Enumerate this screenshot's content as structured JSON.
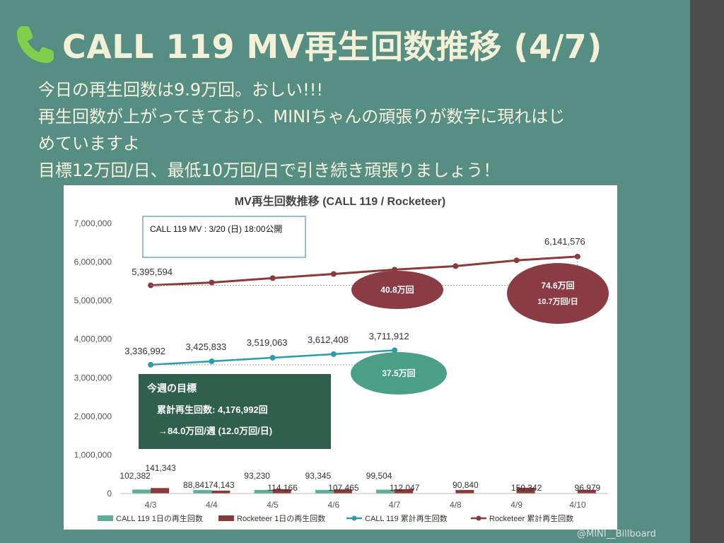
{
  "slide": {
    "title": "CALL 119 MV再生回数推移 (4/7)",
    "lines": [
      "今日の再生回数は9.9万回。おしい!!!",
      "再生回数が上がってきており、MINIちゃんの頑張りが数字に現れはじ",
      "めていますよ",
      "目標12万回/日、最低10万回/日で引き続き頑張りましょう！"
    ],
    "credit": "@MINI__Billboard",
    "icons": {
      "title": "phone-icon"
    },
    "colors": {
      "background": "#568e84",
      "title": "#f3f0d8",
      "phone": "#7fcf4d"
    }
  },
  "chart_data": {
    "type": "bar+line",
    "title": "MV再生回数推移 (CALL 119 / Rocketeer)",
    "categories": [
      "4/3",
      "4/4",
      "4/5",
      "4/6",
      "4/7",
      "4/8",
      "4/9",
      "4/10"
    ],
    "ylim": [
      0,
      7000000
    ],
    "yticks": [
      0,
      1000000,
      2000000,
      3000000,
      4000000,
      5000000,
      6000000,
      7000000
    ],
    "ytick_labels": [
      "0",
      "1,000,000",
      "2,000,000",
      "3,000,000",
      "4,000,000",
      "5,000,000",
      "6,000,000",
      "7,000,000"
    ],
    "grid": false,
    "legend_position": "bottom",
    "series": [
      {
        "name": "CALL 119 1日の再生回数",
        "kind": "bar",
        "color": "#5fae97",
        "values": [
          102382,
          88841,
          93230,
          93345,
          99504,
          null,
          null,
          null
        ],
        "labels": [
          "102,382",
          "88,841",
          "93,230",
          "93,345",
          "99,504",
          "",
          "",
          ""
        ]
      },
      {
        "name": "Rocketeer 1日の再生回数",
        "kind": "bar",
        "color": "#8b3a3a",
        "values": [
          141343,
          74143,
          114166,
          107465,
          112047,
          90840,
          150342,
          96979
        ],
        "labels": [
          "141,343",
          "74,143",
          "114,166",
          "107,465",
          "112,047",
          "90,840",
          "150,342",
          "96,979"
        ]
      },
      {
        "name": "CALL 119 累計再生回数",
        "kind": "line",
        "color": "#2e9aad",
        "values": [
          3336992,
          3425833,
          3519063,
          3612408,
          3711912,
          null,
          null,
          null
        ],
        "labels": [
          "3,336,992",
          "3,425,833",
          "3,519,063",
          "3,612,408",
          "3,711,912",
          "",
          "",
          ""
        ]
      },
      {
        "name": "Rocketeer 累計再生回数",
        "kind": "line",
        "color": "#8b3a3a",
        "values": [
          5395594,
          5468000,
          5582000,
          5690000,
          5802000,
          5893000,
          6043000,
          6141576
        ],
        "labels": [
          "5,395,594",
          "",
          "",
          "",
          "",
          "",
          "",
          "6,141,576"
        ]
      }
    ],
    "annotations": {
      "release_note": "CALL 119 MV : 3/20 (日) 18:00公開",
      "call_ellipse": "37.5万回",
      "rocket_ellipse_mid": "40.8万回",
      "rocket_ellipse_end_1": "74.6万回",
      "rocket_ellipse_end_2": "10.7万回/日",
      "goal_title": "今週の目標",
      "goal_line1": "累計再生回数: 4,176,992回",
      "goal_line2": "→84.0万回/週  (12.0万回/日)"
    }
  }
}
